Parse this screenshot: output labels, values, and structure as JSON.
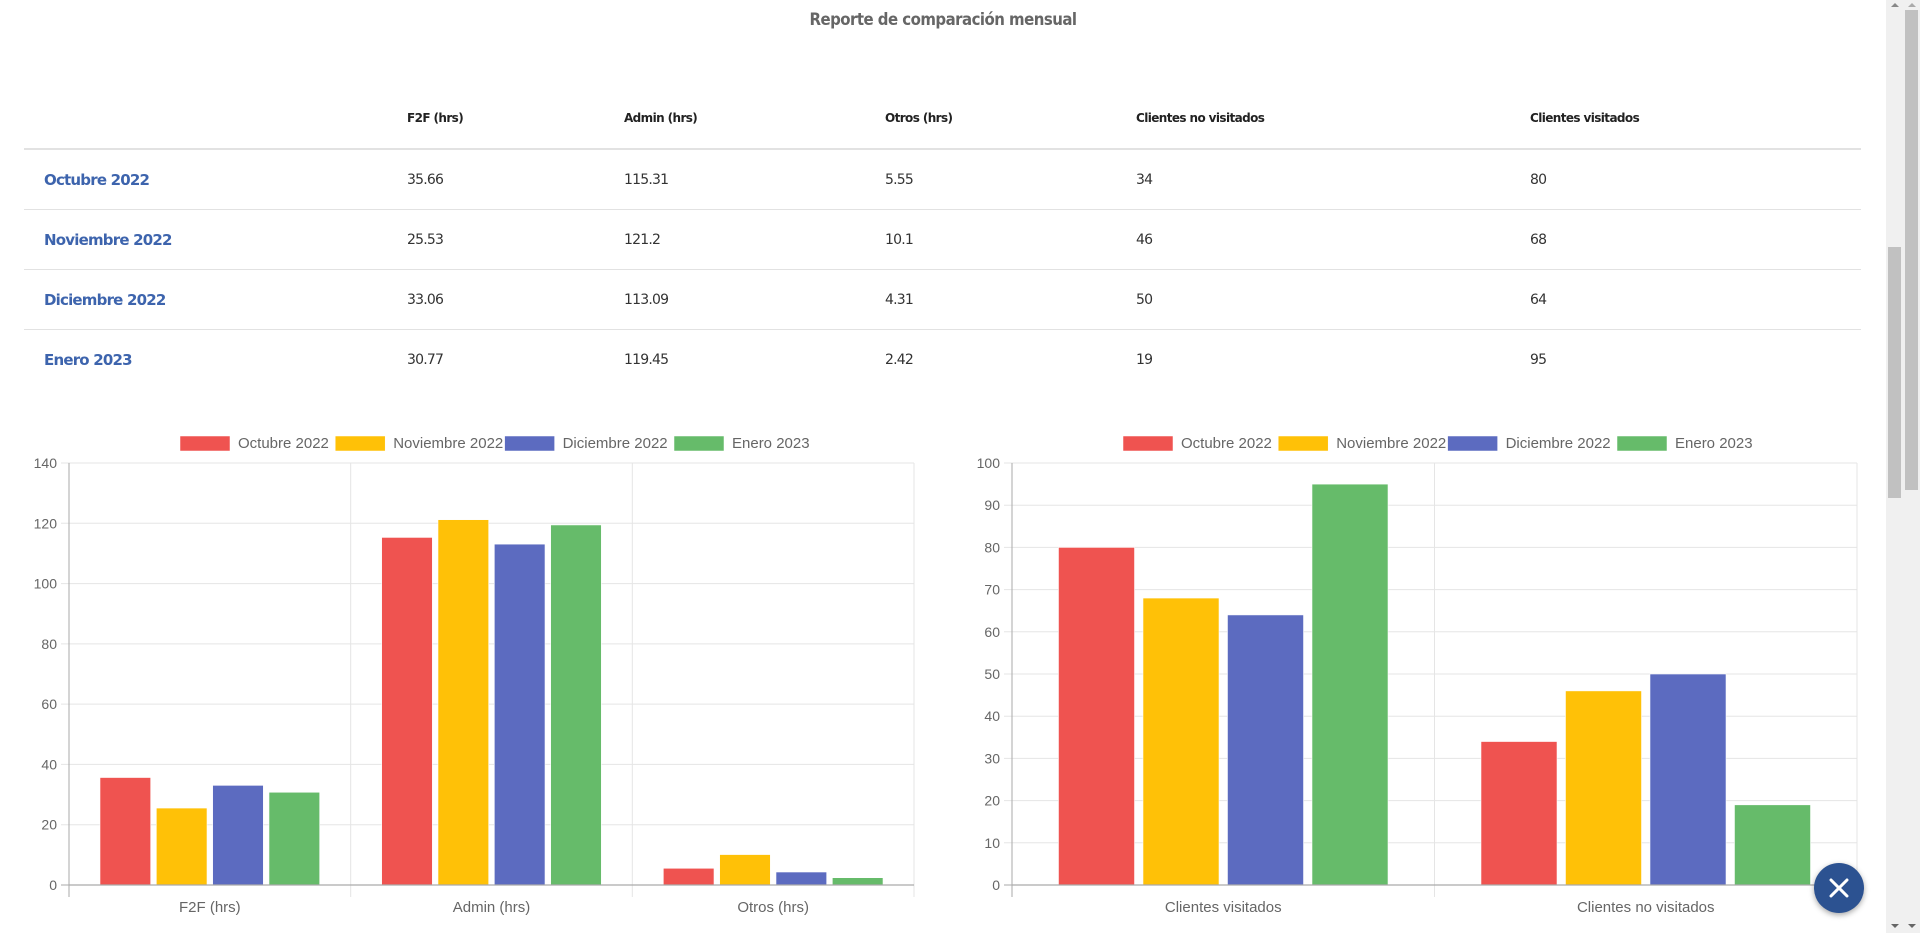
{
  "title": "Reporte de comparación mensual",
  "table": {
    "headers": [
      "",
      "F2F (hrs)",
      "Admin (hrs)",
      "Otros (hrs)",
      "Clientes no visitados",
      "Clientes visitados"
    ],
    "rows": [
      {
        "month": "Octubre 2022",
        "f2f": "35.66",
        "admin": "115.31",
        "otros": "5.55",
        "no_visitados": "34",
        "visitados": "80"
      },
      {
        "month": "Noviembre 2022",
        "f2f": "25.53",
        "admin": "121.2",
        "otros": "10.1",
        "no_visitados": "46",
        "visitados": "68"
      },
      {
        "month": "Diciembre 2022",
        "f2f": "33.06",
        "admin": "113.09",
        "otros": "4.31",
        "no_visitados": "50",
        "visitados": "64"
      },
      {
        "month": "Enero 2023",
        "f2f": "30.77",
        "admin": "119.45",
        "otros": "2.42",
        "no_visitados": "19",
        "visitados": "95"
      }
    ]
  },
  "colors": {
    "Octubre 2022": "#EF5350",
    "Noviembre 2022": "#FFC107",
    "Diciembre 2022": "#5C6BC0",
    "Enero 2023": "#66BB6A",
    "month_link": "#3d64ad",
    "fab": "#2c5291"
  },
  "fab": {
    "icon": "close-icon"
  },
  "chart_data": [
    {
      "type": "bar",
      "title": "",
      "xlabel": "",
      "ylabel": "",
      "categories": [
        "F2F (hrs)",
        "Admin (hrs)",
        "Otros (hrs)"
      ],
      "ylim": [
        0,
        140
      ],
      "yticks": [
        0,
        20,
        40,
        60,
        80,
        100,
        120,
        140
      ],
      "grid": true,
      "legend": "top",
      "series": [
        {
          "name": "Octubre 2022",
          "values": [
            35.66,
            115.31,
            5.55
          ]
        },
        {
          "name": "Noviembre 2022",
          "values": [
            25.53,
            121.2,
            10.1
          ]
        },
        {
          "name": "Diciembre 2022",
          "values": [
            33.06,
            113.09,
            4.31
          ]
        },
        {
          "name": "Enero 2023",
          "values": [
            30.77,
            119.45,
            2.42
          ]
        }
      ]
    },
    {
      "type": "bar",
      "title": "",
      "xlabel": "",
      "ylabel": "",
      "categories": [
        "Clientes visitados",
        "Clientes no visitados"
      ],
      "ylim": [
        0,
        100
      ],
      "yticks": [
        0,
        10,
        20,
        30,
        40,
        50,
        60,
        70,
        80,
        90,
        100
      ],
      "grid": true,
      "legend": "top",
      "series": [
        {
          "name": "Octubre 2022",
          "values": [
            80,
            34
          ]
        },
        {
          "name": "Noviembre 2022",
          "values": [
            68,
            46
          ]
        },
        {
          "name": "Diciembre 2022",
          "values": [
            64,
            50
          ]
        },
        {
          "name": "Enero 2023",
          "values": [
            95,
            19
          ]
        }
      ]
    }
  ]
}
